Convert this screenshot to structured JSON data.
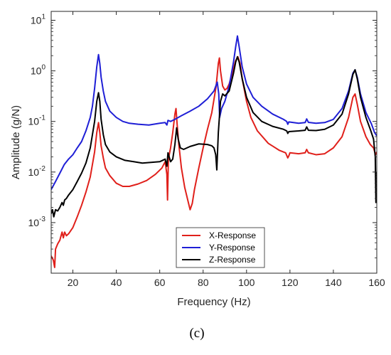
{
  "caption": "(c)",
  "chart_data": {
    "type": "line",
    "title": "",
    "xlabel": "Frequency (Hz)",
    "ylabel": "Amplitude (g/N)",
    "xlim": [
      10,
      160
    ],
    "ylim": [
      0.0001,
      15
    ],
    "yscale": "log",
    "grid": false,
    "legend_position": "bottom-center",
    "x_ticks": [
      20,
      40,
      60,
      80,
      100,
      120,
      140,
      160
    ],
    "y_ticks": [
      {
        "value": 0.001,
        "base": "10",
        "exp": "-3"
      },
      {
        "value": 0.01,
        "base": "10",
        "exp": "-2"
      },
      {
        "value": 0.1,
        "base": "10",
        "exp": "-1"
      },
      {
        "value": 1,
        "base": "10",
        "exp": "0"
      },
      {
        "value": 10,
        "base": "10",
        "exp": "1"
      }
    ],
    "series": [
      {
        "name": "X-Response",
        "color": "#e0201b",
        "points": [
          [
            10,
            0.00022
          ],
          [
            11,
            0.00018
          ],
          [
            11.6,
            0.00013
          ],
          [
            12,
            0.0003
          ],
          [
            13,
            0.00038
          ],
          [
            14,
            0.00045
          ],
          [
            15,
            0.00065
          ],
          [
            15.6,
            0.0005
          ],
          [
            16.2,
            0.00065
          ],
          [
            17,
            0.00055
          ],
          [
            18,
            0.0006
          ],
          [
            20,
            0.0008
          ],
          [
            22,
            0.0013
          ],
          [
            24,
            0.0022
          ],
          [
            26,
            0.004
          ],
          [
            28,
            0.008
          ],
          [
            30,
            0.025
          ],
          [
            31,
            0.06
          ],
          [
            31.8,
            0.095
          ],
          [
            32.4,
            0.06
          ],
          [
            33,
            0.033
          ],
          [
            34,
            0.019
          ],
          [
            35,
            0.012
          ],
          [
            37,
            0.0085
          ],
          [
            40,
            0.006
          ],
          [
            43,
            0.0052
          ],
          [
            46,
            0.0052
          ],
          [
            50,
            0.0058
          ],
          [
            54,
            0.0068
          ],
          [
            58,
            0.009
          ],
          [
            61,
            0.012
          ],
          [
            62.5,
            0.016
          ],
          [
            63.3,
            0.009
          ],
          [
            63.6,
            0.0028
          ],
          [
            64,
            0.018
          ],
          [
            65,
            0.03
          ],
          [
            66,
            0.06
          ],
          [
            67,
            0.14
          ],
          [
            67.5,
            0.18
          ],
          [
            68,
            0.09
          ],
          [
            68.8,
            0.035
          ],
          [
            70,
            0.012
          ],
          [
            71.5,
            0.005
          ],
          [
            73,
            0.0027
          ],
          [
            74,
            0.0018
          ],
          [
            75,
            0.0024
          ],
          [
            76,
            0.0045
          ],
          [
            78,
            0.012
          ],
          [
            80,
            0.03
          ],
          [
            82,
            0.07
          ],
          [
            84,
            0.15
          ],
          [
            86,
            0.5
          ],
          [
            87,
            1.4
          ],
          [
            87.5,
            1.8
          ],
          [
            88,
            1.0
          ],
          [
            89,
            0.5
          ],
          [
            90,
            0.42
          ],
          [
            91,
            0.45
          ],
          [
            92,
            0.55
          ],
          [
            94,
            1.1
          ],
          [
            95,
            1.6
          ],
          [
            96,
            1.9
          ],
          [
            97,
            1.4
          ],
          [
            98,
            0.7
          ],
          [
            100,
            0.25
          ],
          [
            102,
            0.12
          ],
          [
            105,
            0.065
          ],
          [
            110,
            0.037
          ],
          [
            115,
            0.027
          ],
          [
            118,
            0.024
          ],
          [
            119,
            0.019
          ],
          [
            119.5,
            0.021
          ],
          [
            120,
            0.024
          ],
          [
            124,
            0.023
          ],
          [
            127,
            0.024
          ],
          [
            127.7,
            0.028
          ],
          [
            128.5,
            0.024
          ],
          [
            132,
            0.022
          ],
          [
            136,
            0.023
          ],
          [
            140,
            0.03
          ],
          [
            144,
            0.05
          ],
          [
            147,
            0.12
          ],
          [
            149,
            0.3
          ],
          [
            150,
            0.35
          ],
          [
            151,
            0.22
          ],
          [
            152.5,
            0.1
          ],
          [
            155,
            0.05
          ],
          [
            157,
            0.035
          ],
          [
            158.5,
            0.03
          ],
          [
            159.4,
            0.022
          ],
          [
            160,
            0.025
          ]
        ]
      },
      {
        "name": "Y-Response",
        "color": "#1f1fd6",
        "points": [
          [
            10,
            0.0045
          ],
          [
            12,
            0.0065
          ],
          [
            14,
            0.0095
          ],
          [
            16,
            0.014
          ],
          [
            18,
            0.018
          ],
          [
            20,
            0.022
          ],
          [
            22,
            0.03
          ],
          [
            24,
            0.04
          ],
          [
            26,
            0.065
          ],
          [
            28,
            0.12
          ],
          [
            29,
            0.2
          ],
          [
            30,
            0.45
          ],
          [
            31,
            1.2
          ],
          [
            31.8,
            2.1
          ],
          [
            32.4,
            1.4
          ],
          [
            33,
            0.75
          ],
          [
            34,
            0.4
          ],
          [
            35,
            0.25
          ],
          [
            37,
            0.16
          ],
          [
            40,
            0.12
          ],
          [
            43,
            0.1
          ],
          [
            46,
            0.092
          ],
          [
            50,
            0.088
          ],
          [
            55,
            0.085
          ],
          [
            60,
            0.092
          ],
          [
            62.5,
            0.095
          ],
          [
            63.3,
            0.085
          ],
          [
            63.8,
            0.105
          ],
          [
            65,
            0.1
          ],
          [
            67,
            0.11
          ],
          [
            70,
            0.13
          ],
          [
            74,
            0.16
          ],
          [
            78,
            0.2
          ],
          [
            82,
            0.28
          ],
          [
            85,
            0.4
          ],
          [
            86.5,
            0.6
          ],
          [
            87.2,
            0.35
          ],
          [
            87.6,
            0.12
          ],
          [
            88.5,
            0.18
          ],
          [
            90,
            0.25
          ],
          [
            92,
            0.5
          ],
          [
            94,
            1.5
          ],
          [
            95,
            3.0
          ],
          [
            95.8,
            4.9
          ],
          [
            96.6,
            3.0
          ],
          [
            98,
            1.2
          ],
          [
            100,
            0.55
          ],
          [
            103,
            0.3
          ],
          [
            107,
            0.2
          ],
          [
            112,
            0.14
          ],
          [
            117,
            0.11
          ],
          [
            118.5,
            0.1
          ],
          [
            119,
            0.088
          ],
          [
            119.5,
            0.098
          ],
          [
            124,
            0.092
          ],
          [
            127,
            0.095
          ],
          [
            127.7,
            0.112
          ],
          [
            128.5,
            0.096
          ],
          [
            132,
            0.092
          ],
          [
            136,
            0.095
          ],
          [
            140,
            0.11
          ],
          [
            144,
            0.18
          ],
          [
            147,
            0.4
          ],
          [
            149,
            0.9
          ],
          [
            150,
            1.05
          ],
          [
            151,
            0.75
          ],
          [
            152.5,
            0.35
          ],
          [
            155,
            0.15
          ],
          [
            157.5,
            0.09
          ],
          [
            159,
            0.06
          ],
          [
            160,
            0.052
          ]
        ]
      },
      {
        "name": "Z-Response",
        "color": "#000000",
        "points": [
          [
            10,
            0.0015
          ],
          [
            10.6,
            0.0018
          ],
          [
            11.2,
            0.0013
          ],
          [
            12,
            0.0018
          ],
          [
            13,
            0.0017
          ],
          [
            14,
            0.002
          ],
          [
            15,
            0.0025
          ],
          [
            15.6,
            0.0022
          ],
          [
            16.2,
            0.0028
          ],
          [
            17,
            0.003
          ],
          [
            18,
            0.0035
          ],
          [
            20,
            0.0045
          ],
          [
            22,
            0.0065
          ],
          [
            24,
            0.0095
          ],
          [
            26,
            0.015
          ],
          [
            28,
            0.03
          ],
          [
            30,
            0.1
          ],
          [
            31,
            0.25
          ],
          [
            31.8,
            0.37
          ],
          [
            32.4,
            0.25
          ],
          [
            33,
            0.11
          ],
          [
            34,
            0.055
          ],
          [
            35,
            0.035
          ],
          [
            37,
            0.025
          ],
          [
            40,
            0.02
          ],
          [
            44,
            0.017
          ],
          [
            48,
            0.016
          ],
          [
            52,
            0.015
          ],
          [
            56,
            0.0155
          ],
          [
            60,
            0.016
          ],
          [
            62.5,
            0.018
          ],
          [
            63.3,
            0.013
          ],
          [
            63.8,
            0.024
          ],
          [
            65,
            0.016
          ],
          [
            66,
            0.018
          ],
          [
            67,
            0.035
          ],
          [
            67.8,
            0.075
          ],
          [
            68.5,
            0.045
          ],
          [
            69.5,
            0.03
          ],
          [
            71,
            0.028
          ],
          [
            74,
            0.032
          ],
          [
            78,
            0.036
          ],
          [
            82,
            0.035
          ],
          [
            84,
            0.033
          ],
          [
            85,
            0.03
          ],
          [
            85.8,
            0.022
          ],
          [
            86.3,
            0.011
          ],
          [
            87,
            0.06
          ],
          [
            88,
            0.25
          ],
          [
            89,
            0.35
          ],
          [
            90,
            0.32
          ],
          [
            92,
            0.4
          ],
          [
            94,
            0.9
          ],
          [
            95,
            1.5
          ],
          [
            95.8,
            1.9
          ],
          [
            96.6,
            1.5
          ],
          [
            98,
            0.7
          ],
          [
            100,
            0.3
          ],
          [
            103,
            0.15
          ],
          [
            107,
            0.1
          ],
          [
            112,
            0.08
          ],
          [
            117,
            0.07
          ],
          [
            118.5,
            0.065
          ],
          [
            119,
            0.058
          ],
          [
            119.5,
            0.063
          ],
          [
            124,
            0.065
          ],
          [
            127,
            0.067
          ],
          [
            127.7,
            0.078
          ],
          [
            128.5,
            0.067
          ],
          [
            132,
            0.066
          ],
          [
            136,
            0.07
          ],
          [
            140,
            0.085
          ],
          [
            144,
            0.14
          ],
          [
            147,
            0.35
          ],
          [
            149,
            0.85
          ],
          [
            150,
            1.05
          ],
          [
            151,
            0.7
          ],
          [
            152.5,
            0.3
          ],
          [
            155,
            0.12
          ],
          [
            157,
            0.07
          ],
          [
            158.5,
            0.045
          ],
          [
            159.3,
            0.02
          ],
          [
            159.6,
            0.0025
          ],
          [
            160,
            0.01
          ]
        ]
      }
    ]
  }
}
